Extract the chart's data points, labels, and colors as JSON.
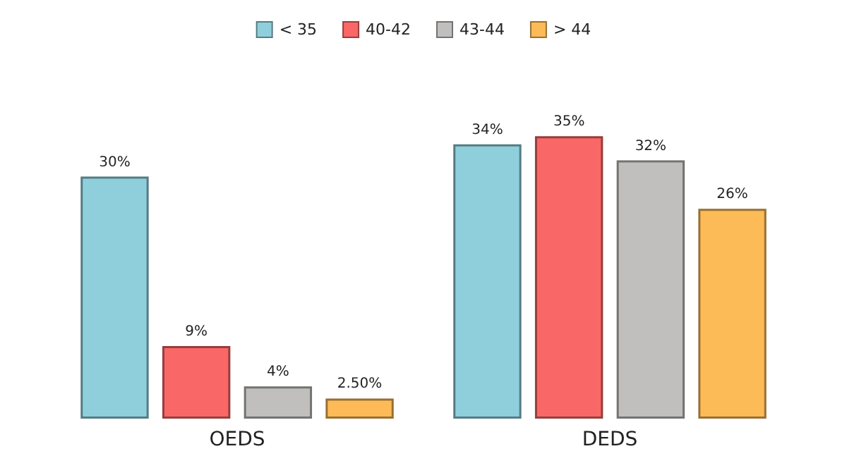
{
  "chart_data": {
    "type": "bar",
    "categories": [
      "OEDS",
      "DEDS"
    ],
    "series": [
      {
        "name": "< 35",
        "color": "#8ecfdb",
        "values": [
          30,
          34
        ],
        "value_labels": [
          "30%",
          "34%"
        ]
      },
      {
        "name": "40-42",
        "color": "#fa6767",
        "values": [
          9,
          35
        ],
        "value_labels": [
          "9%",
          "35%"
        ]
      },
      {
        "name": "43-44",
        "color": "#c0bfbd",
        "values": [
          4,
          32
        ],
        "value_labels": [
          "4%",
          "32%"
        ]
      },
      {
        "name": "> 44",
        "color": "#fdbb57",
        "values": [
          2.5,
          26
        ],
        "value_labels": [
          "2.50%",
          "26%"
        ]
      }
    ],
    "legend": "top",
    "tick_labels": "x"
  }
}
